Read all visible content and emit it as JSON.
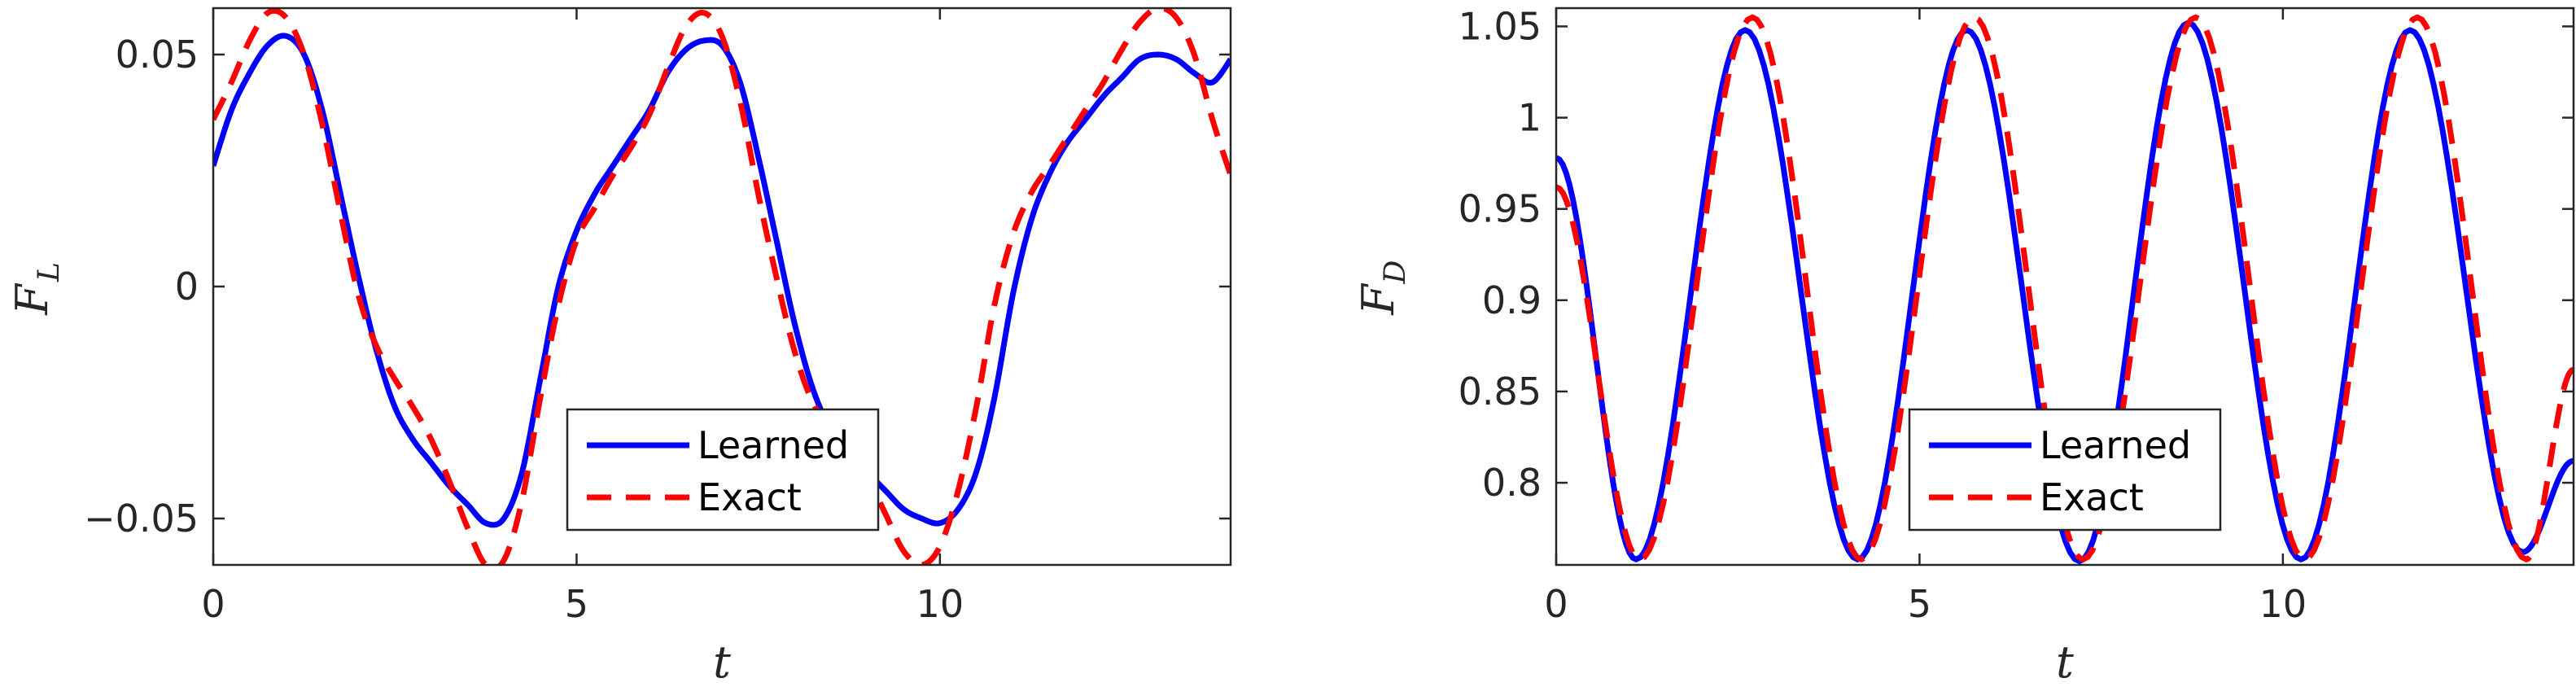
{
  "colors": {
    "learned": "#0000ff",
    "exact": "#ff0000",
    "axis": "#262626"
  },
  "chart_data": [
    {
      "type": "line",
      "title": "",
      "xlabel": "t",
      "ylabel": {
        "main": "F",
        "sub": "L"
      },
      "xlim": [
        0,
        14
      ],
      "ylim": [
        -0.06,
        0.06
      ],
      "grid": false,
      "legend_position": "bottom-right",
      "x_ticks": [
        0,
        5,
        10
      ],
      "x_tick_labels": [
        "0",
        "5",
        "10"
      ],
      "y_ticks": [
        -0.05,
        0,
        0.05
      ],
      "y_tick_labels": [
        "−0.05",
        "0",
        "0.05"
      ],
      "series": [
        {
          "name": "Learned",
          "style": "solid",
          "x": [
            0,
            0.25,
            0.5,
            0.75,
            1.0,
            1.25,
            1.5,
            1.75,
            2.0,
            2.25,
            2.5,
            2.75,
            3.0,
            3.25,
            3.5,
            3.75,
            4.0,
            4.25,
            4.5,
            4.75,
            5.0,
            5.25,
            5.5,
            5.75,
            6.0,
            6.25,
            6.5,
            6.75,
            7.0,
            7.25,
            7.5,
            7.75,
            8.0,
            8.25,
            8.5,
            8.75,
            9.0,
            9.25,
            9.5,
            9.75,
            10.0,
            10.25,
            10.5,
            10.75,
            11.0,
            11.25,
            11.5,
            11.75,
            12.0,
            12.25,
            12.5,
            12.75,
            13.0,
            13.25,
            13.5,
            13.75,
            14.0
          ],
          "y": [
            0.026,
            0.038,
            0.046,
            0.052,
            0.054,
            0.05,
            0.038,
            0.02,
            0.002,
            -0.014,
            -0.026,
            -0.033,
            -0.038,
            -0.043,
            -0.047,
            -0.051,
            -0.05,
            -0.04,
            -0.02,
            0.0,
            0.012,
            0.02,
            0.026,
            0.032,
            0.038,
            0.046,
            0.051,
            0.053,
            0.052,
            0.044,
            0.028,
            0.01,
            -0.008,
            -0.022,
            -0.031,
            -0.036,
            -0.04,
            -0.044,
            -0.048,
            -0.05,
            -0.051,
            -0.048,
            -0.04,
            -0.024,
            -0.002,
            0.014,
            0.024,
            0.031,
            0.036,
            0.041,
            0.045,
            0.049,
            0.05,
            0.049,
            0.046,
            0.044,
            0.049
          ]
        },
        {
          "name": "Exact",
          "style": "dashed",
          "x": [
            0,
            0.25,
            0.5,
            0.75,
            1.0,
            1.25,
            1.5,
            1.75,
            2.0,
            2.25,
            2.5,
            2.75,
            3.0,
            3.25,
            3.5,
            3.75,
            4.0,
            4.25,
            4.5,
            4.75,
            5.0,
            5.25,
            5.5,
            5.75,
            6.0,
            6.25,
            6.5,
            6.75,
            7.0,
            7.25,
            7.5,
            7.75,
            8.0,
            8.25,
            8.5,
            8.75,
            9.0,
            9.25,
            9.5,
            9.75,
            10.0,
            10.25,
            10.5,
            10.75,
            11.0,
            11.25,
            11.5,
            11.75,
            12.0,
            12.25,
            12.5,
            12.75,
            13.0,
            13.25,
            13.5,
            13.75,
            14.0
          ],
          "y": [
            0.036,
            0.044,
            0.053,
            0.059,
            0.058,
            0.05,
            0.035,
            0.016,
            -0.002,
            -0.013,
            -0.02,
            -0.026,
            -0.033,
            -0.042,
            -0.052,
            -0.06,
            -0.059,
            -0.046,
            -0.024,
            -0.004,
            0.01,
            0.017,
            0.024,
            0.03,
            0.037,
            0.047,
            0.056,
            0.059,
            0.054,
            0.04,
            0.02,
            0.002,
            -0.014,
            -0.025,
            -0.031,
            -0.035,
            -0.041,
            -0.049,
            -0.057,
            -0.06,
            -0.056,
            -0.044,
            -0.026,
            -0.004,
            0.011,
            0.02,
            0.026,
            0.032,
            0.038,
            0.044,
            0.051,
            0.057,
            0.06,
            0.058,
            0.05,
            0.036,
            0.024
          ]
        }
      ]
    },
    {
      "type": "line",
      "title": "",
      "xlabel": "t",
      "ylabel": {
        "main": "F",
        "sub": "D"
      },
      "xlim": [
        0,
        14
      ],
      "ylim": [
        0.755,
        1.06
      ],
      "grid": false,
      "legend_position": "bottom-right",
      "x_ticks": [
        0,
        5,
        10
      ],
      "x_tick_labels": [
        "0",
        "5",
        "10"
      ],
      "y_ticks": [
        0.8,
        0.85,
        0.9,
        0.95,
        1.0,
        1.05
      ],
      "y_tick_labels": [
        "0.8",
        "0.85",
        "0.9",
        "0.95",
        "1",
        "1.05"
      ],
      "series": [
        {
          "name": "Learned",
          "style": "solid",
          "phase": -0.08,
          "x": [
            0,
            1.1,
            2.6,
            4.15,
            5.65,
            7.2,
            8.7,
            10.25,
            11.75,
            13.3,
            14.0
          ],
          "y": [
            0.978,
            0.758,
            1.048,
            0.758,
            1.048,
            0.757,
            1.052,
            0.758,
            1.048,
            0.762,
            0.812
          ]
        },
        {
          "name": "Exact",
          "style": "dashed",
          "phase": 0,
          "x": [
            0,
            1.15,
            2.7,
            4.2,
            5.75,
            7.25,
            8.8,
            10.3,
            11.85,
            13.35,
            14.0
          ],
          "y": [
            0.962,
            0.758,
            1.055,
            0.758,
            1.055,
            0.758,
            1.055,
            0.758,
            1.055,
            0.758,
            0.862
          ]
        }
      ]
    }
  ],
  "legend": {
    "learned_label": "Learned",
    "exact_label": "Exact"
  }
}
